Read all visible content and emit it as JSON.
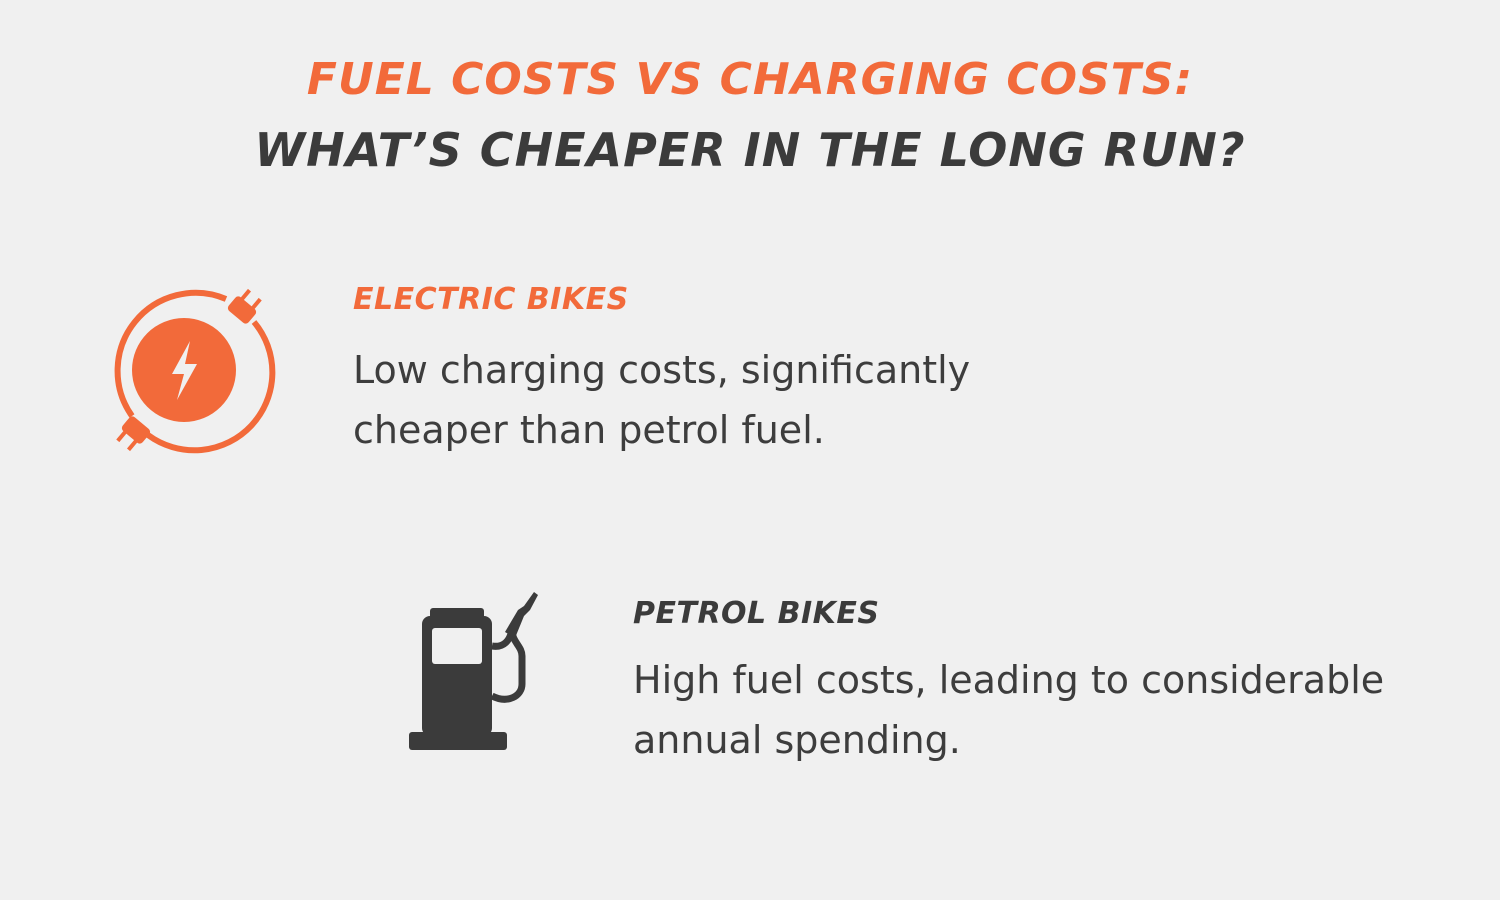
{
  "header": {
    "title_line1": "FUEL COSTS VS CHARGING COSTS:",
    "title_line2": "WHAT’S CHEAPER IN THE LONG RUN?"
  },
  "colors": {
    "accent": "#f26a3a",
    "dark": "#3b3b3b",
    "background": "#f0f0f0"
  },
  "sections": {
    "electric": {
      "icon": "electric-plug-bolt-icon",
      "heading": "ELECTRIC BIKES",
      "body": "Low charging costs, significantly cheaper than petrol fuel."
    },
    "petrol": {
      "icon": "fuel-pump-icon",
      "heading": "PETROL BIKES",
      "body": "High fuel costs, leading to considerable annual spending."
    }
  }
}
